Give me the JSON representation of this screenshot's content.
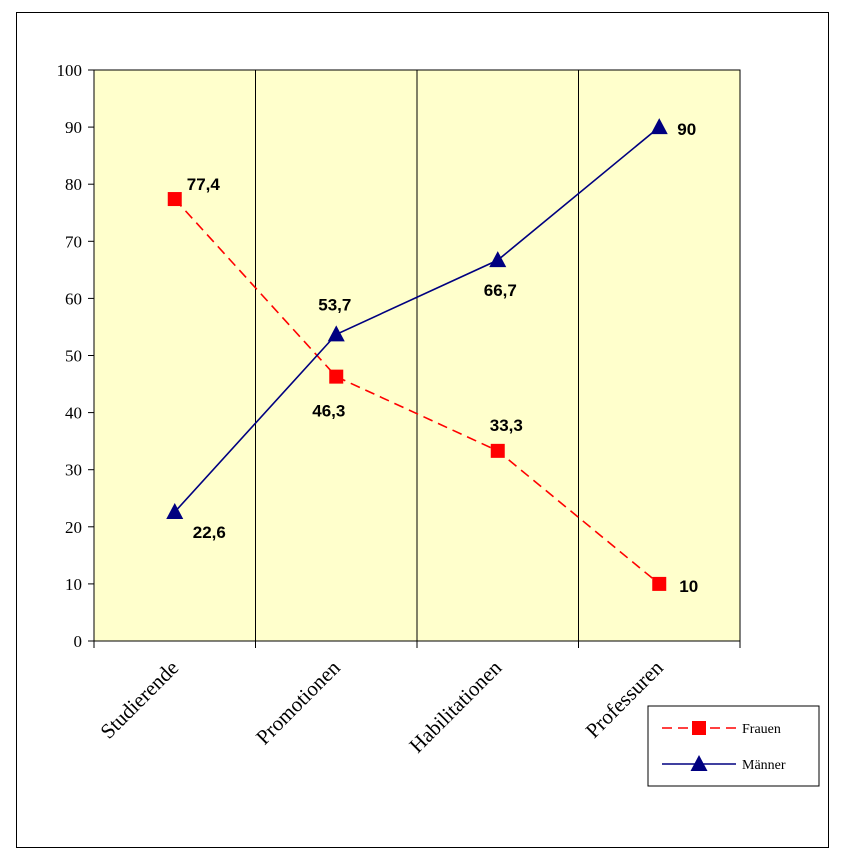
{
  "chart_data": {
    "type": "line",
    "categories": [
      "Studierende",
      "Promotionen",
      "Habilitationen",
      "Professuren"
    ],
    "series": [
      {
        "name": "Frauen",
        "values": [
          77.4,
          46.3,
          33.3,
          10
        ],
        "labels": [
          "77,4",
          "46,3",
          "33,3",
          "10"
        ],
        "color": "#ff0000",
        "line_style": "dashed",
        "marker": "square"
      },
      {
        "name": "Männer",
        "values": [
          22.6,
          53.7,
          66.7,
          90
        ],
        "labels": [
          "22,6",
          "53,7",
          "66,7",
          "90"
        ],
        "color": "#000080",
        "line_style": "solid",
        "marker": "triangle"
      }
    ],
    "y_ticks": [
      "0",
      "10",
      "20",
      "30",
      "40",
      "50",
      "60",
      "70",
      "80",
      "90",
      "100"
    ],
    "ylim": [
      0,
      100
    ],
    "grid": "vertical",
    "plot_background": "#ffffcc",
    "legend_position": "bottom-right"
  }
}
